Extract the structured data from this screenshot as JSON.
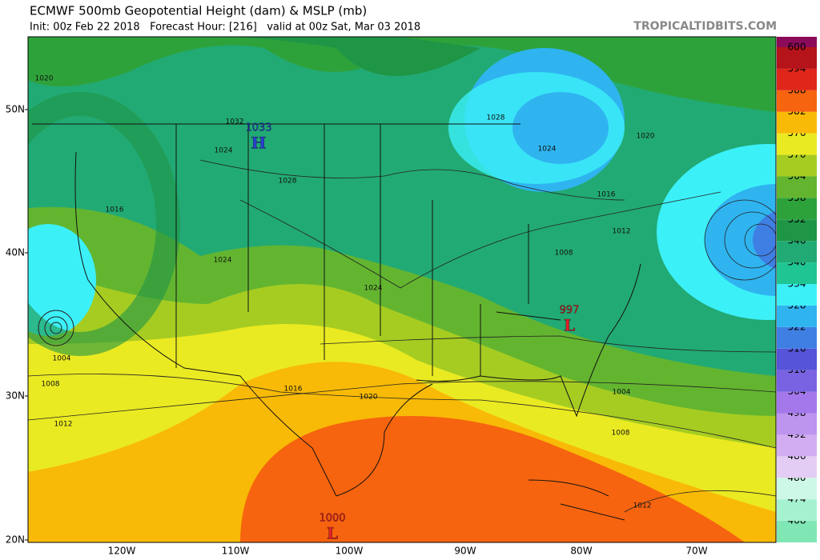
{
  "header": {
    "title": "ECMWF 500mb Geopotential Height (dam) & MSLP (mb)",
    "subtitle": "Init: 00z Feb 22 2018   Forecast Hour: [216]   valid at 00z Sat, Mar 03 2018",
    "site": "TROPICALTIDBITS.COM"
  },
  "latitude_labels": [
    "50N",
    "40N",
    "30N",
    "20N"
  ],
  "longitude_labels": [
    "120W",
    "110W",
    "100W",
    "90W",
    "80W",
    "70W"
  ],
  "colorbar": {
    "levels": [
      468,
      474,
      480,
      486,
      492,
      498,
      504,
      510,
      516,
      522,
      528,
      534,
      540,
      546,
      552,
      558,
      564,
      570,
      576,
      582,
      588,
      594,
      600
    ],
    "colors": [
      "#7fe6b4",
      "#a6f2d0",
      "#cdf7e6",
      "#e3cdf5",
      "#d2adf2",
      "#bd94ee",
      "#a478ea",
      "#7a63e2",
      "#5654d8",
      "#3f7fe3",
      "#2fb4f0",
      "#3cf0f8",
      "#1fc593",
      "#22aa74",
      "#1f9546",
      "#2ea23a",
      "#63b530",
      "#a6cc22",
      "#eaea22",
      "#f8ba06",
      "#f6640f",
      "#e0261a",
      "#b4141a"
    ],
    "top_color": "#8c0a5a"
  },
  "pressure_centers": [
    {
      "label": "1033",
      "symbol": "H"
    },
    {
      "label": "997",
      "symbol": "L"
    },
    {
      "label": "1000",
      "symbol": "L"
    }
  ],
  "isobar_labels": [
    "1020",
    "1032",
    "1024",
    "1028",
    "1016",
    "1024",
    "1024",
    "1004",
    "1008",
    "1012",
    "1016",
    "1020",
    "1028",
    "1024",
    "1016",
    "1012",
    "1008",
    "1020",
    "1004",
    "1008",
    "1012"
  ]
}
